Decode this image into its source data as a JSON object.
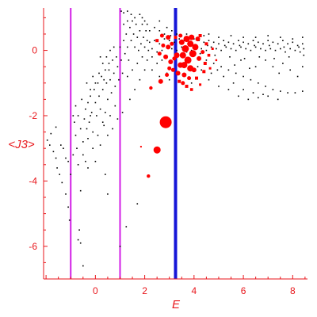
{
  "chart_data": {
    "type": "scatter",
    "xlabel": "E",
    "ylabel": "<J3>",
    "xlim": [
      -2.1,
      8.6
    ],
    "ylim": [
      -7.0,
      1.3
    ],
    "x_ticks": [
      0,
      2,
      4,
      6,
      8
    ],
    "x_tick_labels": [
      "0",
      "2",
      "4",
      "6",
      "8"
    ],
    "y_ticks": [
      0,
      -2,
      -4,
      -6
    ],
    "y_tick_labels": [
      "0",
      "-2",
      "-4",
      "-6"
    ],
    "grid": false,
    "colors": {
      "axis": "#e8161b",
      "background_points": "#000000",
      "highlight_points": "#ff0000",
      "magenta_lines": "#d21fe6",
      "blue_line": "#1616d8"
    },
    "vertical_lines": [
      {
        "x": -1.0,
        "color": "#d21fe6",
        "style": "magenta"
      },
      {
        "x": 1.0,
        "color": "#d21fe6",
        "style": "magenta"
      },
      {
        "x": 3.25,
        "color": "#1616d8",
        "style": "blue"
      }
    ],
    "black_points": [
      [
        -1.95,
        -2.75
      ],
      [
        -1.85,
        -2.9
      ],
      [
        -1.7,
        -3.1
      ],
      [
        -1.6,
        -3.3
      ],
      [
        -1.55,
        -3.6
      ],
      [
        -1.45,
        -3.8
      ],
      [
        -1.35,
        -4.05
      ],
      [
        -1.2,
        -4.4
      ],
      [
        -1.1,
        -4.8
      ],
      [
        -1.05,
        -5.2
      ],
      [
        -1.8,
        -2.55
      ],
      [
        -1.6,
        -2.35
      ],
      [
        -1.4,
        -2.9
      ],
      [
        -1.3,
        -3.0
      ],
      [
        -1.2,
        -3.3
      ],
      [
        -1.1,
        -3.4
      ],
      [
        -0.9,
        -2.0
      ],
      [
        -0.85,
        -2.2
      ],
      [
        -0.8,
        -2.6
      ],
      [
        -0.75,
        -3.0
      ],
      [
        -0.7,
        -3.5
      ],
      [
        -0.65,
        -5.5
      ],
      [
        -0.7,
        -5.8
      ],
      [
        -0.6,
        -4.3
      ],
      [
        -0.5,
        -2.8
      ],
      [
        -0.5,
        -3.2
      ],
      [
        -0.45,
        -2.1
      ],
      [
        -0.4,
        -1.8
      ],
      [
        -0.35,
        -2.4
      ],
      [
        -0.3,
        -1.6
      ],
      [
        -0.3,
        -3.6
      ],
      [
        -0.25,
        -2.2
      ],
      [
        -0.2,
        -1.4
      ],
      [
        -0.15,
        -1.9
      ],
      [
        -0.1,
        -2.5
      ],
      [
        -0.05,
        -1.2
      ],
      [
        0.0,
        -1.6
      ],
      [
        0.05,
        -2.0
      ],
      [
        0.1,
        -1.0
      ],
      [
        0.15,
        -1.4
      ],
      [
        0.2,
        -1.8
      ],
      [
        0.25,
        -0.8
      ],
      [
        0.3,
        -1.2
      ],
      [
        0.35,
        -2.3
      ],
      [
        0.4,
        -0.6
      ],
      [
        0.45,
        -1.0
      ],
      [
        0.5,
        -1.5
      ],
      [
        0.55,
        -0.4
      ],
      [
        0.6,
        -0.9
      ],
      [
        0.65,
        -1.3
      ],
      [
        0.7,
        -0.3
      ],
      [
        0.75,
        -0.7
      ],
      [
        0.8,
        -1.1
      ],
      [
        0.85,
        -0.2
      ],
      [
        0.9,
        -0.5
      ],
      [
        0.95,
        -0.9
      ],
      [
        1.0,
        0.1
      ],
      [
        1.05,
        -0.3
      ],
      [
        1.1,
        -0.7
      ],
      [
        1.15,
        0.3
      ],
      [
        1.2,
        -0.1
      ],
      [
        1.25,
        0.5
      ],
      [
        1.3,
        0.1
      ],
      [
        1.35,
        -0.3
      ],
      [
        1.4,
        0.7
      ],
      [
        1.45,
        0.3
      ],
      [
        1.5,
        0.9
      ],
      [
        1.55,
        0.5
      ],
      [
        1.6,
        0.1
      ],
      [
        1.65,
        0.8
      ],
      [
        1.7,
        0.4
      ],
      [
        1.75,
        0.0
      ],
      [
        1.8,
        0.6
      ],
      [
        1.85,
        0.2
      ],
      [
        1.9,
        0.8
      ],
      [
        1.95,
        0.4
      ],
      [
        2.0,
        0.1
      ],
      [
        2.05,
        0.6
      ],
      [
        2.1,
        0.3
      ],
      [
        2.15,
        0.0
      ],
      [
        1.05,
        1.2
      ],
      [
        1.15,
        1.15
      ],
      [
        1.3,
        1.2
      ],
      [
        0.5,
        -2.6
      ],
      [
        0.2,
        -2.9
      ],
      [
        0.0,
        -3.4
      ],
      [
        -0.2,
        -2.0
      ],
      [
        0.3,
        -2.2
      ],
      [
        -0.5,
        -6.6
      ],
      [
        -0.6,
        -5.9
      ],
      [
        1.25,
        -5.4
      ],
      [
        1.7,
        -4.7
      ],
      [
        1.0,
        -6.0
      ],
      [
        0.4,
        -3.8
      ],
      [
        0.5,
        -4.4
      ],
      [
        2.2,
        0.25
      ],
      [
        2.4,
        0.3
      ],
      [
        2.6,
        0.2
      ],
      [
        2.8,
        0.35
      ],
      [
        3.0,
        0.3
      ],
      [
        3.2,
        0.25
      ],
      [
        3.4,
        0.35
      ],
      [
        3.6,
        0.3
      ],
      [
        3.8,
        0.25
      ],
      [
        4.0,
        0.35
      ],
      [
        4.2,
        0.3
      ],
      [
        4.4,
        0.25
      ],
      [
        4.6,
        0.3
      ],
      [
        4.8,
        0.25
      ],
      [
        5.0,
        0.2
      ],
      [
        5.2,
        0.3
      ],
      [
        5.4,
        0.25
      ],
      [
        5.6,
        0.2
      ],
      [
        5.8,
        0.3
      ],
      [
        6.0,
        0.25
      ],
      [
        6.2,
        0.2
      ],
      [
        6.4,
        0.3
      ],
      [
        6.6,
        0.25
      ],
      [
        6.8,
        0.2
      ],
      [
        7.0,
        0.3
      ],
      [
        7.2,
        0.25
      ],
      [
        7.4,
        0.2
      ],
      [
        7.6,
        0.3
      ],
      [
        7.8,
        0.2
      ],
      [
        8.0,
        0.25
      ],
      [
        8.2,
        0.15
      ],
      [
        8.4,
        0.2
      ],
      [
        2.3,
        0.05
      ],
      [
        2.5,
        -0.05
      ],
      [
        2.7,
        0.0
      ],
      [
        2.9,
        0.1
      ],
      [
        3.1,
        0.05
      ],
      [
        3.3,
        0.0
      ],
      [
        3.5,
        0.1
      ],
      [
        3.7,
        -0.05
      ],
      [
        3.9,
        0.0
      ],
      [
        4.1,
        0.1
      ],
      [
        4.3,
        0.05
      ],
      [
        4.5,
        0.0
      ],
      [
        4.7,
        0.1
      ],
      [
        4.9,
        0.05
      ],
      [
        5.1,
        0.0
      ],
      [
        5.3,
        0.1
      ],
      [
        5.5,
        0.05
      ],
      [
        5.7,
        0.0
      ],
      [
        5.9,
        0.1
      ],
      [
        6.1,
        0.05
      ],
      [
        6.3,
        0.0
      ],
      [
        6.5,
        0.1
      ],
      [
        6.7,
        0.05
      ],
      [
        6.9,
        0.0
      ],
      [
        7.1,
        0.05
      ],
      [
        7.3,
        0.0
      ],
      [
        7.5,
        0.05
      ],
      [
        7.7,
        -0.05
      ],
      [
        7.9,
        0.05
      ],
      [
        8.1,
        0.0
      ],
      [
        8.3,
        -0.05
      ],
      [
        8.45,
        0.05
      ],
      [
        4.2,
        -0.2
      ],
      [
        4.5,
        -0.3
      ],
      [
        4.8,
        -0.4
      ],
      [
        5.1,
        -0.5
      ],
      [
        5.4,
        -0.6
      ],
      [
        5.7,
        -0.7
      ],
      [
        6.0,
        -0.8
      ],
      [
        6.3,
        -0.9
      ],
      [
        6.6,
        -1.0
      ],
      [
        6.9,
        -1.1
      ],
      [
        7.2,
        -1.2
      ],
      [
        7.5,
        -1.25
      ],
      [
        7.8,
        -1.3
      ],
      [
        8.1,
        -1.3
      ],
      [
        8.4,
        -1.25
      ],
      [
        4.6,
        -0.9
      ],
      [
        5.0,
        -1.1
      ],
      [
        5.4,
        -1.2
      ],
      [
        5.8,
        -1.4
      ],
      [
        6.2,
        -1.5
      ],
      [
        6.6,
        -1.45
      ],
      [
        7.0,
        -1.4
      ],
      [
        7.4,
        -1.5
      ],
      [
        3.9,
        -1.0
      ],
      [
        4.3,
        -0.6
      ],
      [
        4.7,
        -0.7
      ],
      [
        5.2,
        -0.8
      ],
      [
        5.6,
        -1.0
      ],
      [
        6.0,
        -1.2
      ],
      [
        6.4,
        -1.3
      ],
      [
        6.8,
        -1.35
      ],
      [
        7.6,
        -0.4
      ],
      [
        7.9,
        -0.6
      ],
      [
        8.2,
        -0.8
      ],
      [
        8.4,
        -0.5
      ],
      [
        6.9,
        -0.3
      ],
      [
        7.2,
        -0.5
      ],
      [
        6.5,
        -0.5
      ],
      [
        5.9,
        -0.3
      ],
      [
        2.4,
        0.7
      ],
      [
        2.6,
        0.6
      ],
      [
        2.8,
        0.5
      ],
      [
        2.2,
        0.6
      ],
      [
        2.0,
        0.9
      ],
      [
        1.9,
        1.0
      ],
      [
        1.8,
        1.1
      ],
      [
        2.1,
        0.8
      ],
      [
        2.6,
        0.9
      ],
      [
        2.9,
        0.7
      ],
      [
        3.1,
        0.6
      ],
      [
        3.3,
        0.5
      ],
      [
        3.5,
        0.45
      ],
      [
        3.7,
        0.5
      ],
      [
        4.4,
        0.45
      ],
      [
        4.6,
        0.5
      ],
      [
        5.0,
        0.4
      ],
      [
        5.5,
        0.45
      ],
      [
        6.0,
        0.4
      ],
      [
        6.5,
        0.4
      ],
      [
        7.0,
        0.45
      ],
      [
        7.5,
        0.4
      ],
      [
        8.0,
        0.35
      ],
      [
        8.4,
        0.4
      ],
      [
        1.3,
        -0.8
      ],
      [
        1.5,
        -0.6
      ],
      [
        1.7,
        -0.4
      ],
      [
        1.9,
        -0.2
      ],
      [
        1.4,
        -1.5
      ],
      [
        1.6,
        -1.2
      ],
      [
        1.8,
        -0.9
      ],
      [
        2.0,
        -0.6
      ],
      [
        0.8,
        -1.7
      ],
      [
        0.9,
        -2.1
      ],
      [
        1.1,
        -1.9
      ],
      [
        0.6,
        -2.0
      ],
      [
        0.7,
        -2.4
      ],
      [
        0.4,
        -1.9
      ],
      [
        0.1,
        -2.6
      ],
      [
        -0.1,
        -3.0
      ],
      [
        -0.3,
        -2.7
      ],
      [
        -0.4,
        -3.4
      ],
      [
        -0.6,
        -2.4
      ],
      [
        -0.7,
        -2.0
      ],
      [
        -0.8,
        -1.7
      ],
      [
        -0.55,
        -1.5
      ],
      [
        -0.9,
        -3.2
      ],
      [
        -1.0,
        -3.8
      ],
      [
        2.1,
        -0.3
      ],
      [
        2.3,
        -0.2
      ],
      [
        2.5,
        -0.4
      ],
      [
        2.7,
        -0.3
      ],
      [
        2.3,
        -0.6
      ],
      [
        2.6,
        -0.8
      ],
      [
        2.9,
        -0.7
      ],
      [
        3.0,
        -0.9
      ],
      [
        0.3,
        -0.4
      ],
      [
        0.45,
        -0.2
      ],
      [
        0.6,
        0.0
      ],
      [
        0.75,
        0.1
      ],
      [
        0.55,
        -0.6
      ],
      [
        0.35,
        -0.9
      ],
      [
        0.15,
        -0.7
      ],
      [
        0.0,
        -1.0
      ],
      [
        -0.2,
        -1.2
      ],
      [
        -0.35,
        -1.0
      ],
      [
        -0.1,
        -0.8
      ],
      [
        0.2,
        -0.2
      ],
      [
        1.15,
        0.8
      ],
      [
        1.3,
        0.9
      ],
      [
        1.45,
        1.1
      ],
      [
        1.6,
        1.0
      ],
      [
        3.05,
        0.45
      ],
      [
        3.45,
        0.2
      ],
      [
        4.05,
        0.15
      ],
      [
        4.25,
        -0.1
      ],
      [
        4.55,
        0.15
      ],
      [
        5.25,
        0.15
      ],
      [
        5.85,
        0.15
      ],
      [
        6.45,
        0.15
      ],
      [
        7.05,
        0.15
      ],
      [
        7.65,
        0.1
      ],
      [
        8.25,
        0.1
      ],
      [
        4.85,
        -0.15
      ],
      [
        5.45,
        -0.2
      ],
      [
        6.05,
        -0.25
      ],
      [
        6.65,
        -0.2
      ],
      [
        7.25,
        -0.25
      ],
      [
        7.85,
        -0.2
      ],
      [
        8.45,
        -0.15
      ],
      [
        3.65,
        -0.35
      ],
      [
        4.15,
        -0.5
      ],
      [
        4.95,
        -0.6
      ],
      [
        5.65,
        -0.45
      ],
      [
        6.25,
        -0.55
      ],
      [
        7.45,
        -0.7
      ]
    ],
    "red_points": [
      {
        "x": 2.85,
        "y": -2.2,
        "size": 7.5
      },
      {
        "x": 2.5,
        "y": -3.05,
        "size": 4.5
      },
      {
        "x": 2.15,
        "y": -3.85,
        "size": 2.2
      },
      {
        "x": 1.85,
        "y": -2.95,
        "size": 1.0
      },
      {
        "x": 2.25,
        "y": -1.15,
        "size": 2.2
      },
      {
        "x": 2.65,
        "y": -0.95,
        "size": 3.0
      },
      {
        "x": 2.9,
        "y": -0.75,
        "size": 2.5
      },
      {
        "x": 3.05,
        "y": -0.35,
        "size": 3.0
      },
      {
        "x": 3.15,
        "y": -0.6,
        "size": 2.5
      },
      {
        "x": 3.3,
        "y": -0.15,
        "size": 3.5
      },
      {
        "x": 3.45,
        "y": -0.45,
        "size": 3.5
      },
      {
        "x": 3.55,
        "y": -0.15,
        "size": 4.0
      },
      {
        "x": 3.65,
        "y": 0.05,
        "size": 4.5
      },
      {
        "x": 3.75,
        "y": -0.3,
        "size": 4.5
      },
      {
        "x": 3.85,
        "y": -0.55,
        "size": 4.0
      },
      {
        "x": 3.95,
        "y": -0.1,
        "size": 4.5
      },
      {
        "x": 4.05,
        "y": 0.1,
        "size": 4.0
      },
      {
        "x": 3.7,
        "y": 0.35,
        "size": 4.0
      },
      {
        "x": 3.5,
        "y": 0.25,
        "size": 3.5
      },
      {
        "x": 3.9,
        "y": 0.4,
        "size": 3.5
      },
      {
        "x": 4.15,
        "y": 0.35,
        "size": 3.0
      },
      {
        "x": 4.2,
        "y": -0.25,
        "size": 3.0
      },
      {
        "x": 4.35,
        "y": -0.05,
        "size": 2.5
      },
      {
        "x": 4.5,
        "y": 0.2,
        "size": 2.0
      },
      {
        "x": 4.45,
        "y": -0.4,
        "size": 2.0
      },
      {
        "x": 4.6,
        "y": -0.15,
        "size": 1.8
      },
      {
        "x": 3.6,
        "y": -0.75,
        "size": 3.0
      },
      {
        "x": 3.8,
        "y": -0.85,
        "size": 2.5
      },
      {
        "x": 4.0,
        "y": -0.6,
        "size": 3.0
      },
      {
        "x": 4.1,
        "y": -0.85,
        "size": 2.0
      },
      {
        "x": 3.55,
        "y": -1.0,
        "size": 2.5
      },
      {
        "x": 3.35,
        "y": -0.7,
        "size": 3.0
      },
      {
        "x": 3.2,
        "y": -0.25,
        "size": 2.5
      },
      {
        "x": 2.95,
        "y": 0.1,
        "size": 3.0
      },
      {
        "x": 2.75,
        "y": 0.15,
        "size": 2.5
      },
      {
        "x": 2.6,
        "y": -0.1,
        "size": 2.5
      },
      {
        "x": 2.85,
        "y": -0.2,
        "size": 3.0
      },
      {
        "x": 2.5,
        "y": 0.3,
        "size": 2.0
      },
      {
        "x": 2.7,
        "y": 0.45,
        "size": 2.5
      },
      {
        "x": 2.95,
        "y": 0.4,
        "size": 3.0
      },
      {
        "x": 3.1,
        "y": 0.2,
        "size": 2.5
      },
      {
        "x": 3.45,
        "y": 0.45,
        "size": 2.5
      },
      {
        "x": 3.25,
        "y": 0.4,
        "size": 2.0
      },
      {
        "x": 4.25,
        "y": 0.45,
        "size": 2.0
      },
      {
        "x": 4.4,
        "y": -0.65,
        "size": 2.0
      },
      {
        "x": 4.65,
        "y": -0.55,
        "size": 1.5
      },
      {
        "x": 4.75,
        "y": 0.05,
        "size": 1.5
      },
      {
        "x": 4.9,
        "y": -0.3,
        "size": 1.2
      },
      {
        "x": 3.0,
        "y": -0.55,
        "size": 2.5
      },
      {
        "x": 3.4,
        "y": -0.95,
        "size": 2.0
      },
      {
        "x": 3.7,
        "y": -1.1,
        "size": 2.0
      },
      {
        "x": 3.9,
        "y": -1.2,
        "size": 1.8
      },
      {
        "x": 4.25,
        "y": -1.05,
        "size": 1.5
      },
      {
        "x": 3.85,
        "y": 0.2,
        "size": 4.0
      },
      {
        "x": 3.6,
        "y": -0.45,
        "size": 4.0
      }
    ]
  }
}
